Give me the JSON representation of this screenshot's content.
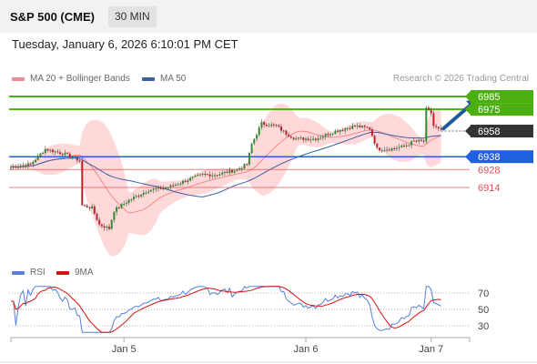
{
  "header": {
    "symbol": "S&P 500 (CME)",
    "timeframe": "30 MIN",
    "datetime": "Tuesday, January 6, 2026 6:10:01 PM CET"
  },
  "credit": "Research © 2026 Trading Central",
  "colors": {
    "bollinger_fill": "#ffd9d9",
    "ma20": "#f28a8a",
    "ma50": "#3a5ea8",
    "candle_up": "#2e8b2e",
    "candle_down": "#c0202a",
    "resistance": "#4caf10",
    "support": "#1f5fe0",
    "minor_support": "#e05050",
    "last_price": "#333333",
    "arrow": "#1f5a9a",
    "rsi": "#5b7ed8",
    "rsi_ma": "#d81010"
  },
  "chart_data": [
    {
      "type": "candlestick",
      "legend": [
        {
          "label": "MA 20 + Bollinger Bands",
          "color": "#f28a8a"
        },
        {
          "label": "MA 50",
          "color": "#3a5ea8"
        }
      ],
      "ylim": [
        6860,
        7000
      ],
      "x_ticks": [
        {
          "label": "Jan 5",
          "index": 46
        },
        {
          "label": "Jan 6",
          "index": 120
        },
        {
          "label": "Jan 7",
          "index": 171
        }
      ],
      "levels": [
        {
          "value": 6985,
          "label": "6985",
          "kind": "resistance"
        },
        {
          "value": 6975,
          "label": "6975",
          "kind": "resistance"
        },
        {
          "value": 6958,
          "label": "6958",
          "kind": "last"
        },
        {
          "value": 6938,
          "label": "6938",
          "kind": "support"
        },
        {
          "value": 6928,
          "label": "6928",
          "kind": "minor"
        },
        {
          "value": 6914,
          "label": "6914",
          "kind": "minor"
        }
      ],
      "arrow": {
        "from": [
          176,
          6960
        ],
        "to": [
          190,
          6983
        ]
      }
    },
    {
      "type": "line",
      "legend": [
        {
          "label": "RSI",
          "color": "#5b7ed8"
        },
        {
          "label": "9MA",
          "color": "#d81010"
        }
      ],
      "ylim": [
        20,
        80
      ],
      "y_ticks": [
        70,
        50,
        30
      ]
    }
  ]
}
